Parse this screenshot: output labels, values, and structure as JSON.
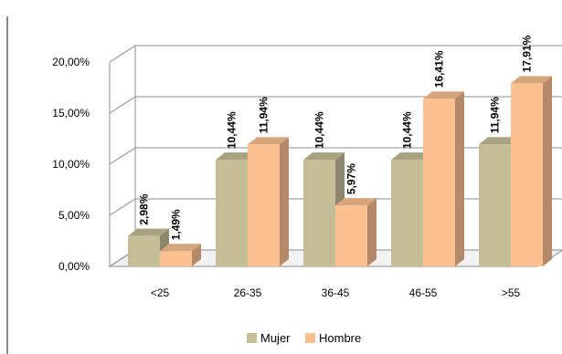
{
  "chart_data": {
    "type": "bar",
    "categories": [
      "<25",
      "26-35",
      "36-45",
      "46-55",
      ">55"
    ],
    "series": [
      {
        "name": "Mujer",
        "values": [
          2.98,
          10.44,
          10.44,
          10.44,
          11.94
        ],
        "labels": [
          "2,98%",
          "10,44%",
          "10,44%",
          "10,44%",
          "11,94%"
        ]
      },
      {
        "name": "Hombre",
        "values": [
          1.49,
          11.94,
          5.97,
          16.41,
          17.91
        ],
        "labels": [
          "1,49%",
          "11,94%",
          "5,97%",
          "16,41%",
          "17,91%"
        ]
      }
    ],
    "y_ticks": [
      "0,00%",
      "5,00%",
      "10,00%",
      "15,00%",
      "20,00%"
    ],
    "ylim": [
      0,
      20
    ],
    "grid": true,
    "legend_position": "bottom",
    "colors": {
      "Mujer": "#c4bd97",
      "Hombre": "#fac090"
    }
  }
}
